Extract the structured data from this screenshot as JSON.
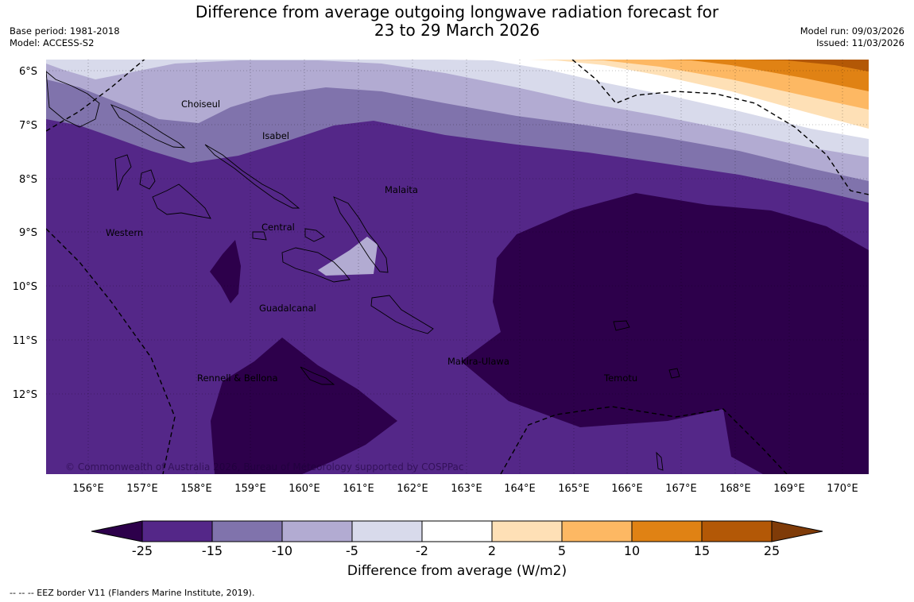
{
  "title": {
    "line1": "Difference from average outgoing longwave radiation forecast for",
    "line2": "23 to 29 March 2026"
  },
  "meta_left": {
    "base_period": "Base period: 1981-2018",
    "model": "Model: ACCESS-S2"
  },
  "meta_right": {
    "model_run": "Model run: 09/03/2026",
    "issued": "Issued: 11/03/2026"
  },
  "map": {
    "lat_labels": [
      "6°S",
      "7°S",
      "8°S",
      "9°S",
      "10°S",
      "11°S",
      "12°S"
    ],
    "lon_labels": [
      "156°E",
      "157°E",
      "158°E",
      "159°E",
      "160°E",
      "161°E",
      "162°E",
      "163°E",
      "164°E",
      "165°E",
      "166°E",
      "167°E",
      "168°E",
      "169°E",
      "170°E"
    ],
    "regions": [
      "Choiseul",
      "Isabel",
      "Malaita",
      "Western",
      "Central",
      "Guadalcanal",
      "Makira-Ulawa",
      "Rennell & Bellona",
      "Temotu"
    ],
    "copyright": "© Commonwealth of Australia 2026, Bureau of Meteorology supported by COSPPac"
  },
  "colorbar": {
    "ticks": [
      "-25",
      "-15",
      "-10",
      "-5",
      "-2",
      "2",
      "5",
      "10",
      "15",
      "25"
    ],
    "label": "Difference from average (W/m2)",
    "colors": {
      "below_min": "#2d004b",
      "bins": [
        "#542788",
        "#8073ac",
        "#b2abd2",
        "#d8daeb",
        "#ffffff",
        "#fee0b6",
        "#fdb863",
        "#e08214",
        "#b35806"
      ],
      "above_max": "#7f3b08"
    }
  },
  "legend": {
    "eez_note": "--  --  -- EEZ border V11 (Flanders Marine Institute, 2019)."
  }
}
